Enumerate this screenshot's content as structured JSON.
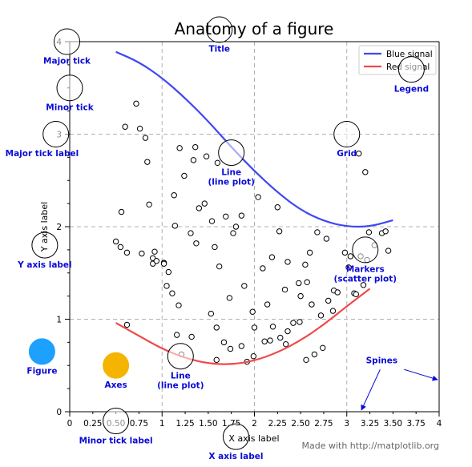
{
  "chart_data": {
    "type": "line",
    "title": "Anatomy of a figure",
    "xlabel": "X axis label",
    "ylabel": "Y axis label",
    "xlim": [
      0,
      4
    ],
    "ylim": [
      0,
      4
    ],
    "x_ticks": [
      0,
      1,
      2,
      3,
      4
    ],
    "x_tick_labels": [
      "0",
      "1",
      "2",
      "3",
      "4"
    ],
    "x_minor_ticks": [
      0.25,
      0.5,
      0.75,
      1.25,
      1.5,
      1.75,
      2.25,
      2.5,
      2.75,
      3.25,
      3.5,
      3.75
    ],
    "x_minor_tick_labels": [
      "0.25",
      "0.50",
      "0.75",
      "1.25",
      "1.50",
      "1.75",
      "2.25",
      "2.50",
      "2.75",
      "3.25",
      "3.50",
      "3.75"
    ],
    "y_ticks": [
      0,
      1,
      2,
      3,
      4
    ],
    "y_tick_labels": [
      "0",
      "1",
      "2",
      "3",
      "4"
    ],
    "y_minor_ticks": [
      0.25,
      0.5,
      0.75,
      1.25,
      1.5,
      1.75,
      2.25,
      2.5,
      2.75,
      3.25,
      3.5,
      3.75
    ],
    "grid": true,
    "legend_position": "top-right",
    "series": [
      {
        "name": "Blue signal",
        "kind": "line",
        "color": "#3f48f0",
        "x": [
          0.5,
          0.75,
          1.0,
          1.25,
          1.5,
          1.75,
          2.0,
          2.25,
          2.5,
          2.75,
          3.0,
          3.25,
          3.5
        ],
        "y": [
          3.89,
          3.78,
          3.61,
          3.39,
          3.14,
          2.86,
          2.6,
          2.37,
          2.18,
          2.06,
          2.0,
          2.0,
          2.07
        ]
      },
      {
        "name": "Red signal",
        "kind": "line",
        "color": "#f04a4a",
        "x": [
          0.5,
          0.75,
          1.0,
          1.25,
          1.5,
          1.75,
          2.0,
          2.25,
          2.5,
          2.75,
          3.0,
          3.25
        ],
        "y": [
          0.96,
          0.82,
          0.68,
          0.58,
          0.52,
          0.51,
          0.55,
          0.64,
          0.77,
          0.94,
          1.14,
          1.33
        ]
      },
      {
        "name": "scatter",
        "kind": "scatter",
        "x": [
          0.72,
          0.76,
          0.82,
          0.84,
          0.6,
          0.56,
          0.86,
          0.92,
          0.9,
          1.02,
          1.13,
          1.24,
          1.34,
          1.36,
          1.19,
          1.48,
          1.6,
          1.46,
          1.4,
          1.54,
          1.69,
          1.57,
          1.77,
          1.86,
          1.8,
          2.04,
          2.25,
          1.59,
          1.67,
          2.14,
          2.0,
          2.28,
          1.98,
          1.05,
          0.5,
          0.55,
          0.62,
          0.78,
          0.9,
          1.02,
          1.11,
          1.18,
          0.94,
          1.14,
          1.07,
          1.31,
          1.37,
          1.62,
          1.73,
          1.89,
          2.09,
          2.19,
          2.36,
          2.33,
          2.5,
          2.62,
          2.57,
          2.68,
          2.78,
          2.72,
          2.48,
          2.85,
          2.98,
          3.04,
          3.15,
          2.6,
          2.55,
          2.86,
          2.8,
          3.08,
          3.18,
          3.3,
          3.38,
          3.42,
          3.45,
          2.9,
          3.24,
          3.02,
          3.1,
          3.22,
          2.2,
          1.53,
          1.32,
          1.21,
          1.99,
          1.92,
          2.11,
          2.36,
          2.42,
          2.49,
          2.17,
          2.34,
          2.56,
          2.65,
          2.74,
          0.62,
          1.16,
          1.59,
          1.86,
          1.74,
          3.2,
          3.13,
          2.27
        ],
        "y": [
          3.33,
          3.06,
          2.96,
          2.7,
          3.08,
          2.16,
          2.24,
          1.73,
          1.6,
          1.61,
          2.34,
          2.55,
          2.72,
          2.86,
          2.85,
          2.76,
          2.69,
          2.25,
          2.2,
          2.06,
          2.11,
          1.78,
          1.93,
          2.12,
          2.0,
          2.32,
          2.21,
          0.56,
          0.75,
          1.16,
          0.91,
          0.8,
          1.08,
          1.36,
          1.84,
          1.78,
          1.72,
          1.71,
          1.66,
          1.6,
          1.28,
          1.15,
          1.63,
          2.01,
          1.51,
          1.93,
          1.82,
          1.57,
          1.23,
          1.36,
          1.55,
          1.67,
          1.62,
          1.32,
          1.25,
          1.16,
          1.4,
          1.94,
          1.87,
          1.04,
          1.39,
          1.09,
          1.72,
          1.68,
          1.68,
          1.72,
          1.59,
          1.31,
          1.2,
          1.28,
          1.37,
          1.8,
          1.93,
          1.95,
          1.74,
          1.29,
          1.94,
          1.56,
          1.27,
          1.64,
          0.92,
          1.06,
          0.81,
          0.62,
          0.6,
          0.54,
          0.76,
          0.87,
          0.96,
          0.97,
          0.77,
          0.73,
          0.56,
          0.62,
          0.69,
          0.94,
          0.83,
          0.91,
          0.71,
          0.68,
          2.59,
          2.79,
          1.95
        ]
      }
    ],
    "annotations": [
      {
        "text": "Major tick",
        "x": -0.03,
        "y": 4.0,
        "label_x": -0.03,
        "label_y": 3.76
      },
      {
        "text": "Minor tick",
        "x": 0.0,
        "y": 3.5,
        "label_x": 0.0,
        "label_y": 3.26
      },
      {
        "text": "Major tick label",
        "x": -0.15,
        "y": 3.0,
        "label_x": -0.3,
        "label_y": 2.76
      },
      {
        "text": "Y axis label",
        "x": -0.27,
        "y": 1.8,
        "label_x": -0.27,
        "label_y": 1.56
      },
      {
        "text": "Title",
        "x": 1.62,
        "y": 4.13,
        "label_x": 1.62,
        "label_y": 3.89
      },
      {
        "text": "Legend",
        "x": 3.7,
        "y": 3.7,
        "label_x": 3.7,
        "label_y": 3.46
      },
      {
        "text": "Grid",
        "x": 3.0,
        "y": 3.0,
        "label_x": 3.0,
        "label_y": 2.76
      },
      {
        "text": "Line\n(line plot)",
        "x": 1.75,
        "y": 2.8,
        "label_x": 1.75,
        "label_y": 2.56
      },
      {
        "text": "Markers\n(scatter plot)",
        "x": 3.2,
        "y": 1.75,
        "label_x": 3.2,
        "label_y": 1.51
      },
      {
        "text": "Line\n(line plot)",
        "x": 1.2,
        "y": 0.6,
        "label_x": 1.2,
        "label_y": 0.36
      },
      {
        "text": "Axes",
        "x": 0.5,
        "y": 0.5,
        "label_x": 0.5,
        "label_y": 0.26
      },
      {
        "text": "Figure",
        "x": -0.3,
        "y": 0.65,
        "label_x": -0.3,
        "label_y": 0.41
      },
      {
        "text": "Spines",
        "x": 3.5,
        "y": 0.5,
        "label_x": 3.5,
        "label_y": 0.5
      },
      {
        "text": "Minor tick label",
        "x": 0.5,
        "y": -0.1,
        "label_x": 0.5,
        "label_y": -0.34
      },
      {
        "text": "X axis label",
        "x": 1.8,
        "y": -0.27,
        "label_x": 1.8,
        "label_y": -0.51
      }
    ],
    "footnote": "Made with http://matplotlib.org"
  }
}
